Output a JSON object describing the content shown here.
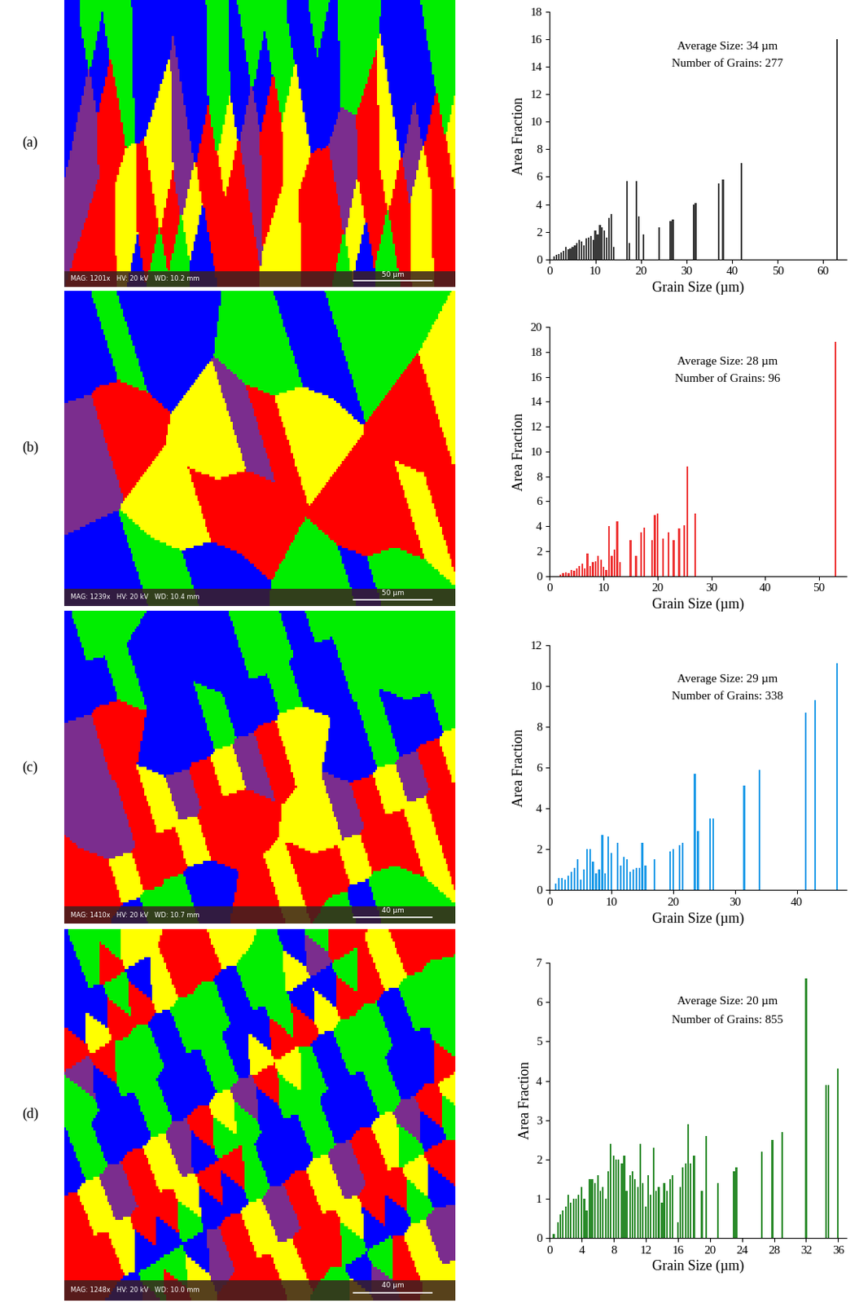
{
  "chart_data": [
    {
      "type": "bar",
      "panel_label": "(a)",
      "micrograph": {
        "info": "MAG: 1201x   HV: 20 kV   WD: 10.2 mm",
        "scale_bar": "50 µm"
      },
      "annotations": [
        "Average Size: 34 µm",
        "Number of Grains: 277"
      ],
      "x_label": "Grain Size (µm)",
      "y_label": "Area Fraction",
      "color": "#3a3a3a",
      "x": [
        1,
        1.5,
        2,
        2.5,
        3,
        3.5,
        4,
        4.5,
        5,
        5.5,
        6,
        6.5,
        7,
        7.5,
        8,
        8.5,
        9,
        9.5,
        10,
        10.5,
        11,
        11.5,
        12,
        12.5,
        13,
        13.5,
        14,
        17,
        17.5,
        19,
        19.5,
        20.5,
        24,
        26.5,
        27,
        31.5,
        32,
        37,
        38,
        42,
        63
      ],
      "values": [
        0.2,
        0.3,
        0.4,
        0.5,
        0.6,
        0.9,
        0.7,
        0.8,
        0.9,
        1.0,
        1.2,
        1.4,
        1.3,
        1.0,
        1.5,
        1.6,
        1.7,
        1.4,
        2.1,
        1.8,
        2.5,
        2.3,
        2.1,
        1.6,
        3.0,
        3.3,
        0.9,
        5.7,
        1.2,
        5.7,
        3.1,
        1.8,
        2.3,
        2.8,
        2.9,
        4.0,
        4.1,
        5.5,
        5.8,
        7.0,
        16.0
      ],
      "xlim": [
        0,
        65
      ],
      "xticks": [
        0,
        10,
        20,
        30,
        40,
        50,
        60
      ],
      "ylim": [
        0,
        18
      ],
      "yticks": [
        0,
        2,
        4,
        6,
        8,
        10,
        12,
        14,
        16,
        18
      ]
    },
    {
      "type": "bar",
      "panel_label": "(b)",
      "micrograph": {
        "info": "MAG: 1239x   HV: 20 kV   WD: 10.4 mm",
        "scale_bar": "50 µm"
      },
      "annotations": [
        "Average Size: 28 µm",
        "Number of Grains: 96"
      ],
      "x_label": "Grain Size (µm)",
      "y_label": "Area Fraction",
      "color": "#ee3333",
      "x": [
        2,
        2.5,
        3,
        3.5,
        4,
        4.5,
        5,
        5.5,
        6,
        6.5,
        7,
        7.5,
        8,
        8.5,
        9,
        9.5,
        10,
        10.5,
        11,
        11.5,
        12,
        12.5,
        13,
        15,
        16,
        17,
        17.5,
        19,
        19.5,
        20,
        21,
        22,
        23,
        24,
        25,
        25.5,
        27,
        53
      ],
      "values": [
        0.1,
        0.2,
        0.3,
        0.2,
        0.5,
        0.4,
        0.6,
        0.8,
        1.0,
        0.6,
        1.8,
        0.8,
        1.1,
        1.2,
        1.6,
        1.3,
        0.7,
        0.5,
        4.0,
        1.6,
        2.1,
        4.4,
        1.1,
        2.9,
        1.6,
        3.5,
        3.9,
        2.9,
        4.9,
        5.0,
        3.0,
        3.5,
        2.9,
        3.8,
        4.1,
        8.8,
        5.0,
        18.8
      ],
      "xlim": [
        0,
        55
      ],
      "xticks": [
        0,
        10,
        20,
        30,
        40,
        50
      ],
      "ylim": [
        0,
        20
      ],
      "yticks": [
        0,
        2,
        4,
        6,
        8,
        10,
        12,
        14,
        16,
        18,
        20
      ]
    },
    {
      "type": "bar",
      "panel_label": "(c)",
      "micrograph": {
        "info": "MAG: 1410x   HV: 20 kV   WD: 10.7 mm",
        "scale_bar": "40 µm"
      },
      "annotations": [
        "Average Size: 29 µm",
        "Number of Grains: 338"
      ],
      "x_label": "Grain Size (µm)",
      "y_label": "Area Fraction",
      "color": "#1e9be8",
      "x": [
        1,
        1.5,
        2,
        2.5,
        3,
        3.5,
        4,
        4.5,
        5,
        5.5,
        6,
        6.5,
        7,
        7.5,
        8,
        8.5,
        9,
        9.5,
        10,
        11,
        11.5,
        12,
        12.5,
        13,
        13.5,
        14,
        14.5,
        15,
        15.5,
        17,
        19.5,
        20,
        21,
        21.5,
        23.5,
        24,
        26,
        26.5,
        31.5,
        34,
        41.5,
        43,
        46.5
      ],
      "values": [
        0.3,
        0.6,
        0.6,
        0.5,
        0.7,
        0.9,
        1.1,
        1.5,
        0.5,
        1.0,
        2.0,
        2.0,
        1.4,
        0.8,
        1.0,
        2.7,
        0.8,
        2.6,
        1.8,
        2.3,
        1.2,
        1.6,
        1.5,
        0.9,
        1.0,
        1.1,
        1.1,
        2.3,
        1.2,
        1.5,
        1.9,
        2.0,
        2.2,
        2.3,
        5.7,
        2.9,
        3.5,
        3.5,
        5.1,
        5.9,
        8.7,
        9.3,
        11.1
      ],
      "xlim": [
        0,
        48
      ],
      "xticks": [
        0,
        10,
        20,
        30,
        40
      ],
      "ylim": [
        0,
        12
      ],
      "yticks": [
        0,
        2,
        4,
        6,
        8,
        10,
        12
      ]
    },
    {
      "type": "bar",
      "panel_label": "(d)",
      "micrograph": {
        "info": "MAG: 1248x   HV: 20 kV   WD: 10.0 mm",
        "scale_bar": "40 µm"
      },
      "annotations": [
        "Average Size: 20 µm",
        "Number of Grains: 855"
      ],
      "x_label": "Grain Size (µm)",
      "y_label": "Area Fraction",
      "color": "#2a8a2a",
      "x": [
        0.5,
        1,
        1.3,
        1.6,
        2,
        2.3,
        2.6,
        3,
        3.3,
        3.6,
        4,
        4.3,
        4.6,
        5,
        5.3,
        5.6,
        6,
        6.3,
        6.6,
        7,
        7.3,
        7.6,
        8,
        8.3,
        8.6,
        9,
        9.3,
        9.6,
        10,
        10.3,
        10.6,
        11,
        11.3,
        11.6,
        12,
        12.3,
        12.6,
        13,
        13.3,
        13.6,
        14,
        14.3,
        14.6,
        15,
        15.3,
        16,
        16.3,
        16.6,
        17,
        17.3,
        17.6,
        18,
        19,
        19.5,
        21,
        23,
        23.3,
        26.5,
        27.8,
        29,
        32,
        34.5,
        34.8,
        36
      ],
      "values": [
        0.1,
        0.4,
        0.6,
        0.7,
        0.8,
        1.1,
        0.9,
        1.0,
        1.0,
        1.1,
        1.3,
        1.0,
        0.7,
        1.5,
        1.5,
        1.4,
        1.6,
        1.2,
        1.3,
        1.0,
        1.7,
        2.4,
        2.1,
        2.0,
        2.0,
        1.9,
        2.1,
        1.2,
        1.6,
        1.7,
        1.5,
        1.3,
        2.4,
        1.4,
        0.8,
        1.6,
        1.1,
        2.3,
        1.2,
        1.3,
        0.9,
        1.4,
        1.2,
        1.5,
        1.6,
        0.4,
        1.3,
        1.8,
        1.9,
        2.9,
        1.9,
        2.1,
        1.2,
        2.6,
        1.4,
        1.7,
        1.8,
        2.2,
        2.5,
        2.7,
        6.6,
        3.9,
        3.9,
        4.3
      ],
      "xlim": [
        0,
        37
      ],
      "xticks": [
        0,
        4,
        8,
        12,
        16,
        20,
        24,
        28,
        32,
        36
      ],
      "ylim": [
        0,
        7
      ],
      "yticks": [
        0,
        1,
        2,
        3,
        4,
        5,
        6,
        7
      ]
    }
  ]
}
